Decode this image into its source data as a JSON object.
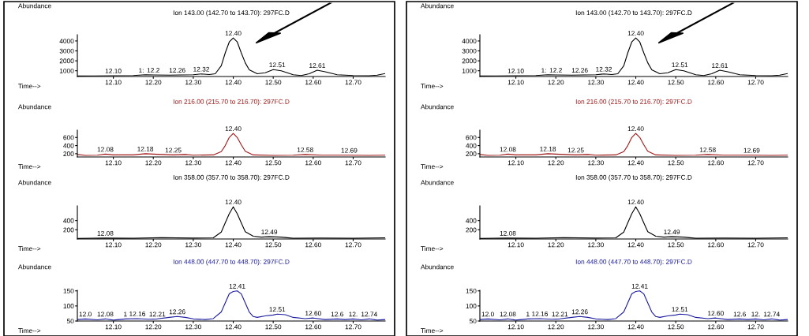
{
  "chart_data": [
    {
      "type": "line",
      "title": "Ion 143.00 (142.70 to 143.70): 297FC.D",
      "xlabel": "Time-->",
      "ylabel": "Abundance",
      "x": [
        12.01,
        12.05,
        12.1,
        12.15,
        12.18,
        12.2,
        12.24,
        12.27,
        12.3,
        12.32,
        12.34,
        12.355,
        12.37,
        12.38,
        12.39,
        12.4,
        12.41,
        12.42,
        12.43,
        12.44,
        12.46,
        12.48,
        12.5,
        12.52,
        12.55,
        12.57,
        12.59,
        12.61,
        12.63,
        12.66,
        12.7,
        12.74,
        12.76,
        12.78
      ],
      "series": [
        {
          "color": "#000000",
          "values": [
            470,
            480,
            500,
            520,
            600,
            580,
            560,
            580,
            600,
            680,
            620,
            700,
            1500,
            2800,
            3900,
            4300,
            3900,
            2800,
            1800,
            1100,
            700,
            800,
            1120,
            1000,
            600,
            520,
            700,
            1050,
            900,
            600,
            520,
            500,
            560,
            720
          ]
        }
      ],
      "xlim": [
        12.01,
        12.78
      ],
      "ylim": [
        420,
        4630
      ],
      "xticks": [
        {
          "value": 12.1,
          "label": "12.10"
        },
        {
          "value": 12.2,
          "label": "12.20"
        },
        {
          "value": 12.3,
          "label": "12.30"
        },
        {
          "value": 12.4,
          "label": "12.40"
        },
        {
          "value": 12.5,
          "label": "12.50"
        },
        {
          "value": 12.6,
          "label": "12.60"
        },
        {
          "value": 12.7,
          "label": "12.70"
        }
      ],
      "yticks": [
        1000,
        2000,
        3000,
        4000
      ],
      "grid": false,
      "legend": false,
      "annotations": [
        {
          "text": "12.10",
          "x": 12.1,
          "y": 500
        },
        {
          "text": "1:",
          "x": 12.17,
          "y": 560
        },
        {
          "text": "12.2",
          "x": 12.2,
          "y": 580
        },
        {
          "text": "12.26",
          "x": 12.26,
          "y": 570
        },
        {
          "text": "12.32",
          "x": 12.32,
          "y": 680
        },
        {
          "text": "12.40",
          "x": 12.4,
          "y": 4300
        },
        {
          "text": "12.51",
          "x": 12.51,
          "y": 1120
        },
        {
          "text": "12.61",
          "x": 12.61,
          "y": 1050
        }
      ]
    },
    {
      "type": "line",
      "title": "Ion 216.00 (215.70 to 216.70): 297FC.D",
      "xlabel": "Time-->",
      "ylabel": "Abundance",
      "x": [
        12.01,
        12.03,
        12.06,
        12.08,
        12.1,
        12.15,
        12.18,
        12.21,
        12.25,
        12.28,
        12.3,
        12.35,
        12.37,
        12.38,
        12.39,
        12.4,
        12.41,
        12.42,
        12.43,
        12.45,
        12.5,
        12.55,
        12.58,
        12.62,
        12.69,
        12.74,
        12.78
      ],
      "series": [
        {
          "color": "#a01818",
          "values": [
            180,
            160,
            165,
            190,
            170,
            170,
            200,
            185,
            170,
            180,
            165,
            170,
            250,
            400,
            600,
            700,
            600,
            420,
            260,
            170,
            160,
            165,
            180,
            165,
            165,
            160,
            165
          ]
        }
      ],
      "xlim": [
        12.01,
        12.78
      ],
      "ylim": [
        120,
        780
      ],
      "xticks": [
        {
          "value": 12.1,
          "label": "12.10"
        },
        {
          "value": 12.2,
          "label": "12.20"
        },
        {
          "value": 12.3,
          "label": "12.30"
        },
        {
          "value": 12.4,
          "label": "12.40"
        },
        {
          "value": 12.5,
          "label": "12.50"
        },
        {
          "value": 12.6,
          "label": "12.60"
        },
        {
          "value": 12.7,
          "label": "12.70"
        }
      ],
      "yticks": [
        200,
        400,
        600
      ],
      "grid": false,
      "legend": false,
      "annotations": [
        {
          "text": "12.08",
          "x": 12.08,
          "y": 190
        },
        {
          "text": "12.18",
          "x": 12.18,
          "y": 200
        },
        {
          "text": "12.25",
          "x": 12.25,
          "y": 170
        },
        {
          "text": "12.40",
          "x": 12.4,
          "y": 700
        },
        {
          "text": "12.58",
          "x": 12.58,
          "y": 180
        },
        {
          "text": "12.69",
          "x": 12.69,
          "y": 165
        }
      ]
    },
    {
      "type": "line",
      "title": "Ion 358.00 (357.70 to 358.70): 297FC.D",
      "xlabel": "Time-->",
      "ylabel": "Abundance",
      "x": [
        12.01,
        12.08,
        12.15,
        12.22,
        12.3,
        12.35,
        12.37,
        12.38,
        12.39,
        12.4,
        12.41,
        12.42,
        12.43,
        12.45,
        12.47,
        12.49,
        12.52,
        12.55,
        12.62,
        12.7,
        12.78
      ],
      "series": [
        {
          "color": "#000000",
          "values": [
            10,
            20,
            15,
            30,
            20,
            25,
            150,
            350,
            550,
            700,
            550,
            350,
            160,
            60,
            40,
            50,
            40,
            15,
            20,
            15,
            25
          ]
        }
      ],
      "xlim": [
        12.01,
        12.78
      ],
      "ylim": [
        0,
        720
      ],
      "xticks": [
        {
          "value": 12.1,
          "label": "12.10"
        },
        {
          "value": 12.2,
          "label": "12.20"
        },
        {
          "value": 12.3,
          "label": "12.30"
        },
        {
          "value": 12.4,
          "label": "12.40"
        },
        {
          "value": 12.5,
          "label": "12.50"
        },
        {
          "value": 12.6,
          "label": "12.60"
        },
        {
          "value": 12.7,
          "label": "12.70"
        }
      ],
      "yticks": [
        200,
        400
      ],
      "grid": false,
      "legend": false,
      "annotations": [
        {
          "text": "12.08",
          "x": 12.08,
          "y": 20
        },
        {
          "text": "12.40",
          "x": 12.4,
          "y": 700
        },
        {
          "text": "12.49",
          "x": 12.49,
          "y": 50
        }
      ]
    },
    {
      "type": "line",
      "title": "Ion 448.00 (447.70 to 448.70): 297FC.D",
      "xlabel": "Time-->",
      "ylabel": "Abundance",
      "x": [
        12.01,
        12.03,
        12.06,
        12.08,
        12.1,
        12.13,
        12.16,
        12.19,
        12.21,
        12.24,
        12.26,
        12.28,
        12.3,
        12.33,
        12.35,
        12.37,
        12.38,
        12.39,
        12.4,
        12.41,
        12.42,
        12.43,
        12.44,
        12.45,
        12.46,
        12.48,
        12.5,
        12.51,
        12.53,
        12.55,
        12.58,
        12.6,
        12.63,
        12.66,
        12.68,
        12.7,
        12.72,
        12.74,
        12.76,
        12.78
      ],
      "series": [
        {
          "color": "#1c1ca0",
          "values": [
            55,
            57,
            54,
            57,
            53,
            57,
            58,
            56,
            57,
            62,
            65,
            62,
            57,
            55,
            58,
            80,
            110,
            140,
            148,
            150,
            140,
            110,
            80,
            65,
            62,
            67,
            70,
            73,
            71,
            62,
            58,
            60,
            55,
            57,
            55,
            57,
            54,
            57,
            53,
            55
          ]
        }
      ],
      "xlim": [
        12.01,
        12.78
      ],
      "ylim": [
        50,
        152
      ],
      "xticks": [
        {
          "value": 12.1,
          "label": "12.10"
        },
        {
          "value": 12.2,
          "label": "12.20"
        },
        {
          "value": 12.3,
          "label": "12.30"
        },
        {
          "value": 12.4,
          "label": "12.40"
        },
        {
          "value": 12.5,
          "label": "12.50"
        },
        {
          "value": 12.6,
          "label": "12.60"
        },
        {
          "value": 12.7,
          "label": "12.70"
        }
      ],
      "yticks": [
        50,
        100,
        150
      ],
      "grid": false,
      "legend": false,
      "annotations": [
        {
          "text": "12.0",
          "x": 12.03,
          "y": 57
        },
        {
          "text": "12.08",
          "x": 12.08,
          "y": 57
        },
        {
          "text": "1",
          "x": 12.13,
          "y": 57
        },
        {
          "text": "12.16",
          "x": 12.16,
          "y": 58
        },
        {
          "text": "12.21",
          "x": 12.21,
          "y": 57
        },
        {
          "text": "12.26",
          "x": 12.26,
          "y": 65
        },
        {
          "text": "12.41",
          "x": 12.41,
          "y": 150
        },
        {
          "text": "12.51",
          "x": 12.51,
          "y": 73
        },
        {
          "text": "12.60",
          "x": 12.6,
          "y": 60
        },
        {
          "text": "12.6",
          "x": 12.66,
          "y": 57
        },
        {
          "text": "12.",
          "x": 12.7,
          "y": 57
        },
        {
          "text": "12.74",
          "x": 12.74,
          "y": 57
        }
      ]
    },
    {
      "type": "line",
      "title": "Ion 143.00 (142.70 to 143.70): 297FC.D",
      "xlabel": "Time-->",
      "ylabel": "Abundance",
      "x": [
        12.01,
        12.05,
        12.1,
        12.15,
        12.18,
        12.2,
        12.24,
        12.27,
        12.3,
        12.32,
        12.34,
        12.355,
        12.37,
        12.38,
        12.39,
        12.4,
        12.41,
        12.42,
        12.43,
        12.44,
        12.46,
        12.48,
        12.5,
        12.52,
        12.55,
        12.57,
        12.59,
        12.61,
        12.63,
        12.66,
        12.7,
        12.74,
        12.76,
        12.78
      ],
      "series": [
        {
          "color": "#000000",
          "values": [
            470,
            480,
            500,
            520,
            600,
            580,
            560,
            580,
            600,
            680,
            620,
            700,
            1500,
            2800,
            3900,
            4300,
            3900,
            2800,
            1800,
            1100,
            700,
            800,
            1120,
            1000,
            600,
            520,
            700,
            1050,
            900,
            600,
            520,
            500,
            560,
            720
          ]
        }
      ],
      "xlim": [
        12.01,
        12.78
      ],
      "ylim": [
        420,
        4630
      ],
      "xticks": [
        {
          "value": 12.1,
          "label": "12.10"
        },
        {
          "value": 12.2,
          "label": "12.20"
        },
        {
          "value": 12.3,
          "label": "12.30"
        },
        {
          "value": 12.4,
          "label": "12.40"
        },
        {
          "value": 12.5,
          "label": "12.50"
        },
        {
          "value": 12.6,
          "label": "12.60"
        },
        {
          "value": 12.7,
          "label": "12.70"
        }
      ],
      "yticks": [
        1000,
        2000,
        3000,
        4000
      ],
      "grid": false,
      "legend": false,
      "annotations": [
        {
          "text": "12.10",
          "x": 12.1,
          "y": 500
        },
        {
          "text": "1:",
          "x": 12.17,
          "y": 560
        },
        {
          "text": "12.2",
          "x": 12.2,
          "y": 580
        },
        {
          "text": "12.26",
          "x": 12.26,
          "y": 570
        },
        {
          "text": "12.32",
          "x": 12.32,
          "y": 680
        },
        {
          "text": "12.40",
          "x": 12.4,
          "y": 4300
        },
        {
          "text": "12.51",
          "x": 12.51,
          "y": 1120
        },
        {
          "text": "12.61",
          "x": 12.61,
          "y": 1050
        }
      ]
    },
    {
      "type": "line",
      "title": "Ion 216.00 (215.70 to 216.70): 297FC.D",
      "xlabel": "Time-->",
      "ylabel": "Abundance",
      "x": [
        12.01,
        12.03,
        12.06,
        12.08,
        12.1,
        12.15,
        12.18,
        12.21,
        12.25,
        12.28,
        12.3,
        12.35,
        12.37,
        12.38,
        12.39,
        12.4,
        12.41,
        12.42,
        12.43,
        12.45,
        12.5,
        12.55,
        12.58,
        12.62,
        12.69,
        12.74,
        12.78
      ],
      "series": [
        {
          "color": "#a01818",
          "values": [
            180,
            160,
            165,
            190,
            170,
            170,
            200,
            185,
            170,
            180,
            165,
            170,
            250,
            400,
            600,
            700,
            600,
            420,
            260,
            170,
            160,
            165,
            180,
            165,
            165,
            160,
            165
          ]
        }
      ],
      "xlim": [
        12.01,
        12.78
      ],
      "ylim": [
        120,
        780
      ],
      "xticks": [
        {
          "value": 12.1,
          "label": "12.10"
        },
        {
          "value": 12.2,
          "label": "12.20"
        },
        {
          "value": 12.3,
          "label": "12.30"
        },
        {
          "value": 12.4,
          "label": "12.40"
        },
        {
          "value": 12.5,
          "label": "12.50"
        },
        {
          "value": 12.6,
          "label": "12.60"
        },
        {
          "value": 12.7,
          "label": "12.70"
        }
      ],
      "yticks": [
        200,
        400,
        600
      ],
      "grid": false,
      "legend": false,
      "annotations": [
        {
          "text": "12.08",
          "x": 12.08,
          "y": 190
        },
        {
          "text": "12.18",
          "x": 12.18,
          "y": 200
        },
        {
          "text": "12.25",
          "x": 12.25,
          "y": 170
        },
        {
          "text": "12.40",
          "x": 12.4,
          "y": 700
        },
        {
          "text": "12.58",
          "x": 12.58,
          "y": 180
        },
        {
          "text": "12.69",
          "x": 12.69,
          "y": 165
        }
      ]
    },
    {
      "type": "line",
      "title": "Ion 358.00 (357.70 to 358.70): 297FC.D",
      "xlabel": "Time-->",
      "ylabel": "Abundance",
      "x": [
        12.01,
        12.08,
        12.15,
        12.22,
        12.3,
        12.35,
        12.37,
        12.38,
        12.39,
        12.4,
        12.41,
        12.42,
        12.43,
        12.45,
        12.47,
        12.49,
        12.52,
        12.55,
        12.62,
        12.7,
        12.78
      ],
      "series": [
        {
          "color": "#000000",
          "values": [
            10,
            20,
            15,
            30,
            20,
            25,
            150,
            350,
            550,
            700,
            550,
            350,
            160,
            60,
            40,
            50,
            40,
            15,
            20,
            15,
            25
          ]
        }
      ],
      "xlim": [
        12.01,
        12.78
      ],
      "ylim": [
        0,
        720
      ],
      "xticks": [
        {
          "value": 12.1,
          "label": "12.10"
        },
        {
          "value": 12.2,
          "label": "12.20"
        },
        {
          "value": 12.3,
          "label": "12.30"
        },
        {
          "value": 12.4,
          "label": "12.40"
        },
        {
          "value": 12.5,
          "label": "12.50"
        },
        {
          "value": 12.6,
          "label": "12.60"
        },
        {
          "value": 12.7,
          "label": "12.70"
        }
      ],
      "yticks": [
        200,
        400
      ],
      "grid": false,
      "legend": false,
      "annotations": [
        {
          "text": "12.08",
          "x": 12.08,
          "y": 20
        },
        {
          "text": "12.40",
          "x": 12.4,
          "y": 700
        },
        {
          "text": "12.49",
          "x": 12.49,
          "y": 50
        }
      ]
    },
    {
      "type": "line",
      "title": "Ion 448.00 (447.70 to 448.70): 297FC.D",
      "xlabel": "Time-->",
      "ylabel": "Abundance",
      "x": [
        12.01,
        12.03,
        12.06,
        12.08,
        12.1,
        12.13,
        12.16,
        12.19,
        12.21,
        12.24,
        12.26,
        12.28,
        12.3,
        12.33,
        12.35,
        12.37,
        12.38,
        12.39,
        12.4,
        12.41,
        12.42,
        12.43,
        12.44,
        12.45,
        12.46,
        12.48,
        12.5,
        12.51,
        12.53,
        12.55,
        12.58,
        12.6,
        12.63,
        12.66,
        12.68,
        12.7,
        12.72,
        12.74,
        12.76,
        12.78
      ],
      "series": [
        {
          "color": "#1c1ca0",
          "values": [
            55,
            57,
            54,
            57,
            53,
            57,
            58,
            56,
            57,
            62,
            65,
            62,
            57,
            55,
            58,
            80,
            110,
            140,
            148,
            150,
            140,
            110,
            80,
            65,
            62,
            67,
            70,
            73,
            71,
            62,
            58,
            60,
            55,
            57,
            55,
            57,
            54,
            57,
            53,
            55
          ]
        }
      ],
      "xlim": [
        12.01,
        12.78
      ],
      "ylim": [
        50,
        152
      ],
      "xticks": [
        {
          "value": 12.1,
          "label": "12.10"
        },
        {
          "value": 12.2,
          "label": "12.20"
        },
        {
          "value": 12.3,
          "label": "12.30"
        },
        {
          "value": 12.4,
          "label": "12.40"
        },
        {
          "value": 12.5,
          "label": "12.50"
        },
        {
          "value": 12.6,
          "label": "12.60"
        },
        {
          "value": 12.7,
          "label": "12.70"
        }
      ],
      "yticks": [
        50,
        100,
        150
      ],
      "grid": false,
      "legend": false,
      "annotations": [
        {
          "text": "12.0",
          "x": 12.03,
          "y": 57
        },
        {
          "text": "12.08",
          "x": 12.08,
          "y": 57
        },
        {
          "text": "1",
          "x": 12.13,
          "y": 57
        },
        {
          "text": "12.16",
          "x": 12.16,
          "y": 58
        },
        {
          "text": "12.21",
          "x": 12.21,
          "y": 57
        },
        {
          "text": "12.26",
          "x": 12.26,
          "y": 65
        },
        {
          "text": "12.41",
          "x": 12.41,
          "y": 150
        },
        {
          "text": "12.51",
          "x": 12.51,
          "y": 73
        },
        {
          "text": "12.60",
          "x": 12.6,
          "y": 60
        },
        {
          "text": "12.6",
          "x": 12.66,
          "y": 57
        },
        {
          "text": "12.",
          "x": 12.7,
          "y": 57
        },
        {
          "text": "12.74",
          "x": 12.74,
          "y": 57
        }
      ]
    }
  ]
}
